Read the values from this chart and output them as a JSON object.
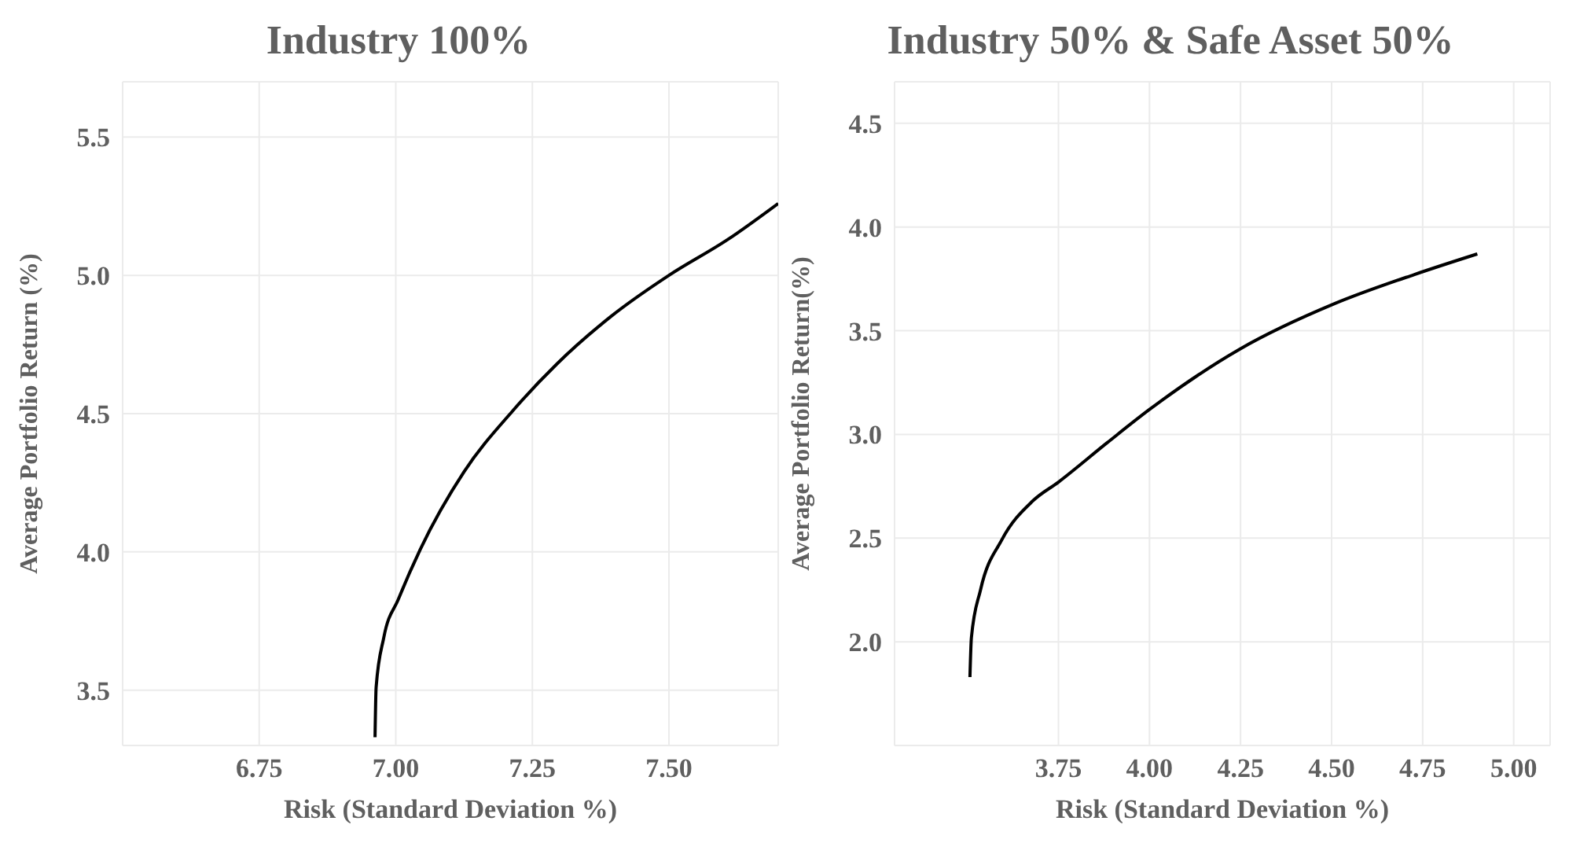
{
  "chart_data": [
    {
      "type": "line",
      "title": "Industry 100%",
      "xlabel": "Risk (Standard Deviation %)",
      "ylabel": "Average Portfolio Return (%)",
      "xlim": [
        6.5,
        7.7
      ],
      "ylim": [
        3.3,
        5.7
      ],
      "xticks": [
        6.75,
        {
          "value": 7,
          "label": "7.00"
        },
        7.25,
        {
          "value": 7.5,
          "label": "7.50"
        }
      ],
      "yticks": [
        3.5,
        {
          "value": 4,
          "label": "4.0"
        },
        4.5,
        {
          "value": 5,
          "label": "5.0"
        },
        5.5
      ],
      "grid": true,
      "series": [
        {
          "color": "#000000",
          "x": [
            6.962,
            6.964,
            6.978,
            7.005,
            7.045,
            7.125,
            7.214,
            7.295,
            7.393,
            7.5,
            7.608,
            7.7
          ],
          "values": [
            3.33,
            3.51,
            3.69,
            3.83,
            4.01,
            4.29,
            4.51,
            4.68,
            4.85,
            5.0,
            5.13,
            5.26
          ]
        }
      ]
    },
    {
      "type": "line",
      "title": "Industry 50% & Safe Asset 50%",
      "xlabel": "Risk (Standard Deviation %)",
      "ylabel": "Average Portfolio Return(%)",
      "xlim": [
        3.3,
        5.1
      ],
      "ylim": [
        1.5,
        4.7
      ],
      "xticks": [
        3.75,
        {
          "value": 4,
          "label": "4.00"
        },
        4.25,
        {
          "value": 4.5,
          "label": "4.50"
        },
        4.75,
        {
          "value": 5,
          "label": "5.00"
        }
      ],
      "yticks": [
        {
          "value": 2,
          "label": "2.0"
        },
        2.5,
        {
          "value": 3,
          "label": "3.0"
        },
        3.5,
        {
          "value": 4,
          "label": "4.0"
        },
        4.5
      ],
      "grid": true,
      "series": [
        {
          "color": "#000000",
          "x": [
            3.507,
            3.511,
            3.536,
            3.594,
            3.68,
            3.75,
            3.884,
            4.0,
            4.247,
            4.508,
            4.726,
            4.9
          ],
          "values": [
            1.83,
            2.02,
            2.25,
            2.49,
            2.68,
            2.77,
            2.96,
            3.12,
            3.41,
            3.63,
            3.77,
            3.87
          ]
        }
      ]
    }
  ]
}
